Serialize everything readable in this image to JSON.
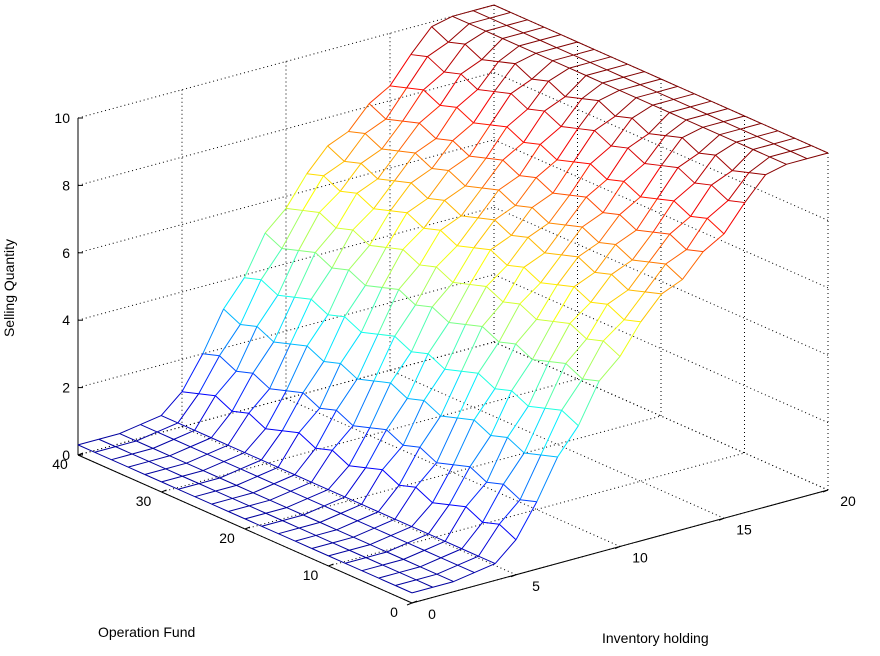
{
  "chart_data": {
    "type": "surface",
    "title": "",
    "xlabel": "Inventory holding",
    "ylabel": "Operation Fund",
    "zlabel": "Selling Quantity",
    "xlim": [
      0,
      20
    ],
    "ylim": [
      0,
      40
    ],
    "zlim": [
      0,
      10
    ],
    "x_ticks": [
      "0",
      "5",
      "10",
      "15",
      "20"
    ],
    "y_ticks": [
      "0",
      "10",
      "20",
      "30",
      "40"
    ],
    "z_ticks": [
      "0",
      "2",
      "4",
      "6",
      "8",
      "10"
    ],
    "x_tick_values": [
      0,
      5,
      10,
      15,
      20
    ],
    "y_tick_values": [
      0,
      10,
      20,
      30,
      40
    ],
    "z_tick_values": [
      0,
      2,
      4,
      6,
      8,
      10
    ],
    "grid": true,
    "colormap": "jet",
    "mesh": {
      "x_count": 21,
      "y_count": 21,
      "description_levels": "selling quantity rises from about 0 at low inventory to 10 at high inventory",
      "z_profile_by_inventory": [
        0.3,
        0.3,
        0.3,
        0.4,
        0.5,
        1.2,
        2.0,
        3.0,
        4.0,
        5.0,
        5.8,
        6.5,
        7.0,
        7.5,
        8.0,
        8.6,
        9.2,
        9.7,
        10.0,
        10.0,
        10.0
      ]
    }
  }
}
